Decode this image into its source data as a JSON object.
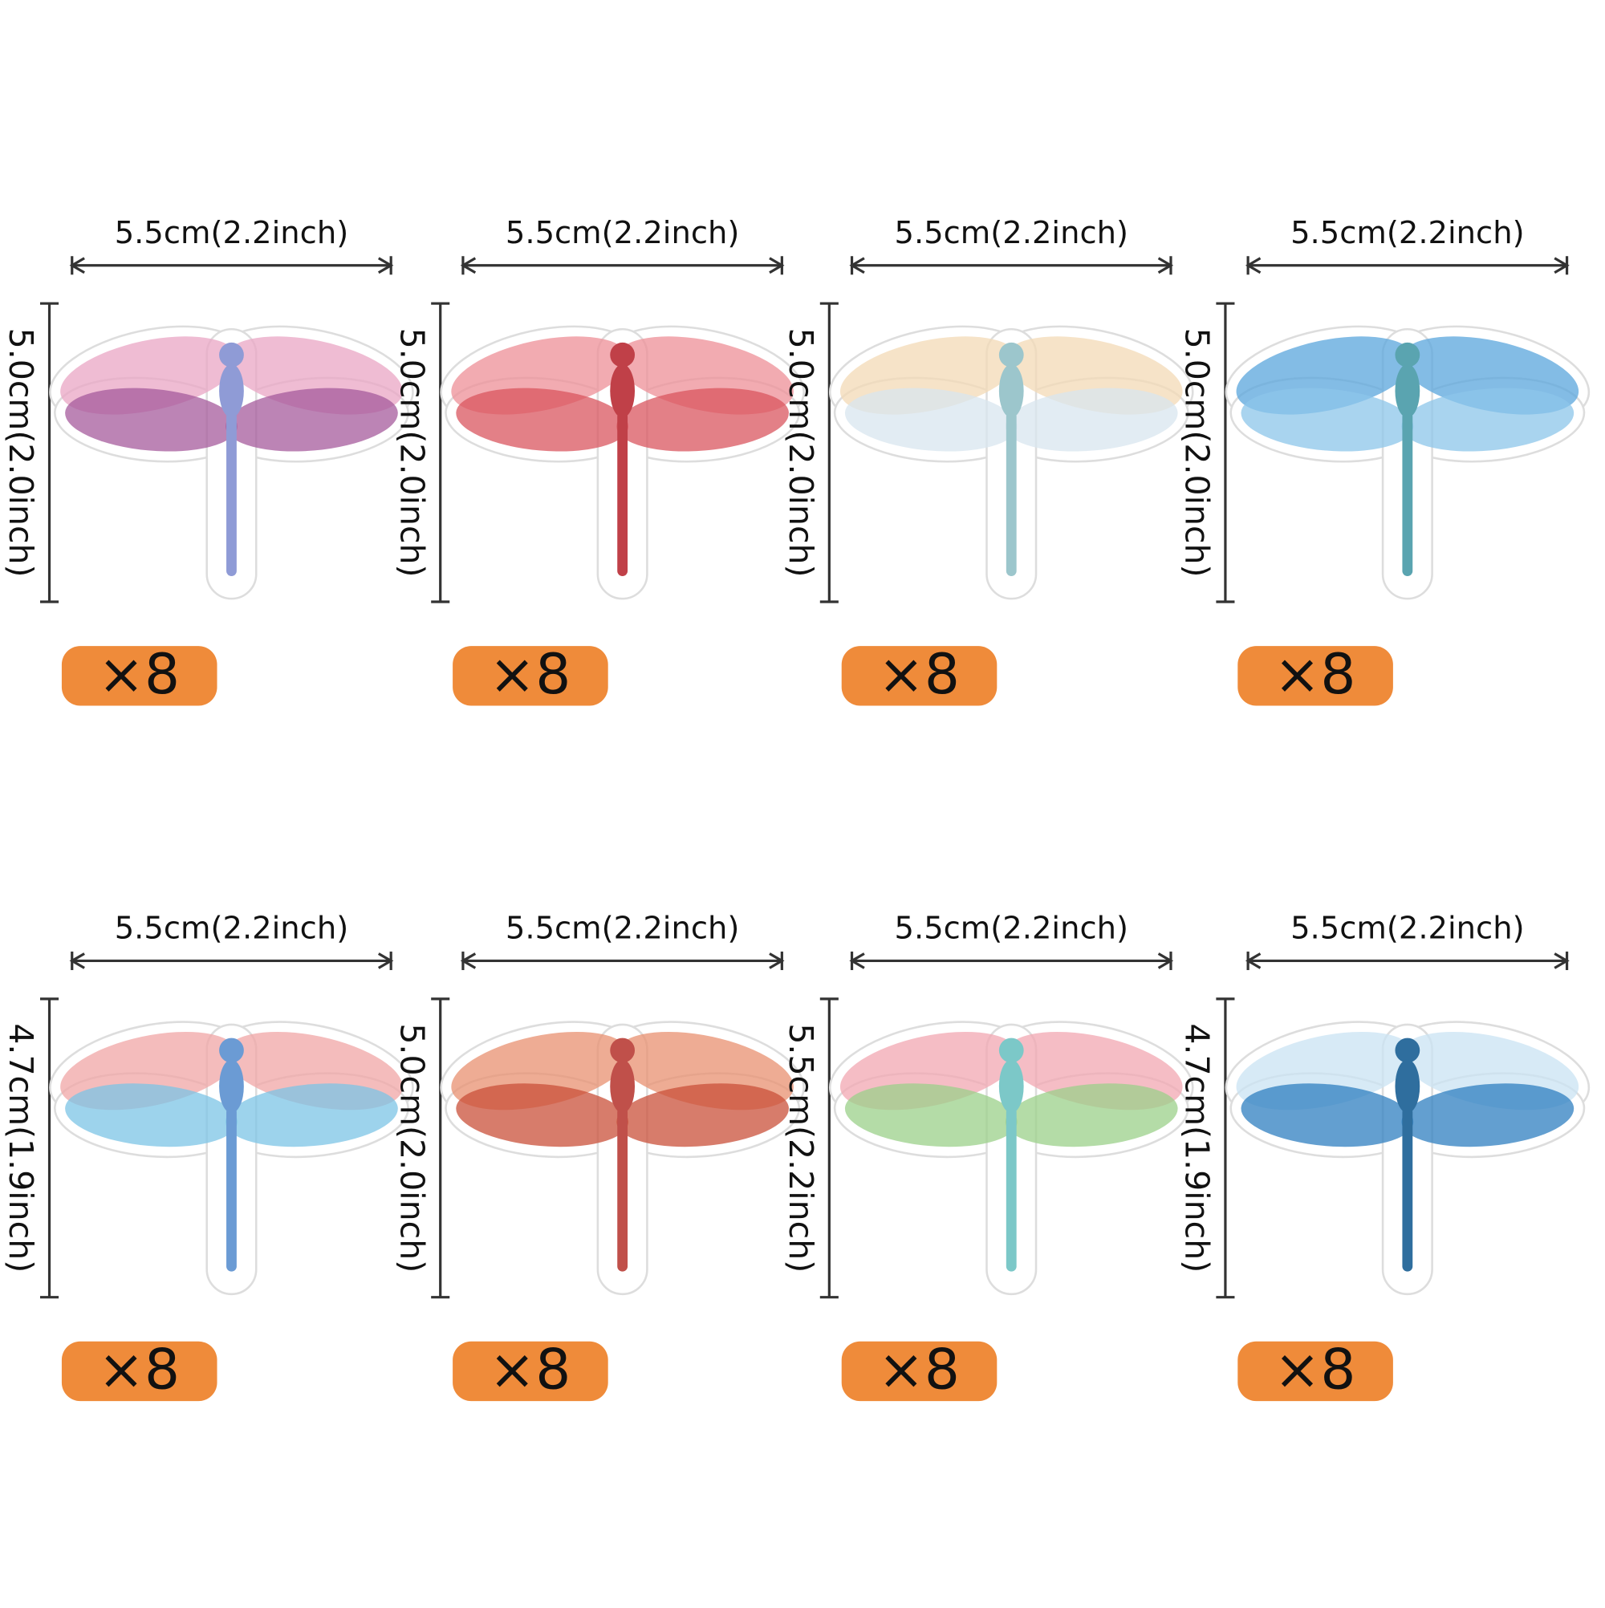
{
  "items": [
    {
      "width": "5.5cm(2.2inch)",
      "height": "5.0cm(2.0inch)",
      "count": "×8"
    },
    {
      "width": "5.5cm(2.2inch)",
      "height": "5.0cm(2.0inch)",
      "count": "×8"
    },
    {
      "width": "5.5cm(2.2inch)",
      "height": "5.0cm(2.0inch)",
      "count": "×8"
    },
    {
      "width": "5.5cm(2.2inch)",
      "height": "5.0cm(2.0inch)",
      "count": "×8"
    },
    {
      "width": "5.5cm(2.2inch)",
      "height": "4.7cm(1.9inch)",
      "count": "×8"
    },
    {
      "width": "5.5cm(2.2inch)",
      "height": "5.0cm(2.0inch)",
      "count": "×8"
    },
    {
      "width": "5.5cm(2.2inch)",
      "height": "5.5cm(2.2inch)",
      "count": "×8"
    },
    {
      "width": "5.5cm(2.2inch)",
      "height": "4.7cm(1.9inch)",
      "count": "×8"
    }
  ]
}
